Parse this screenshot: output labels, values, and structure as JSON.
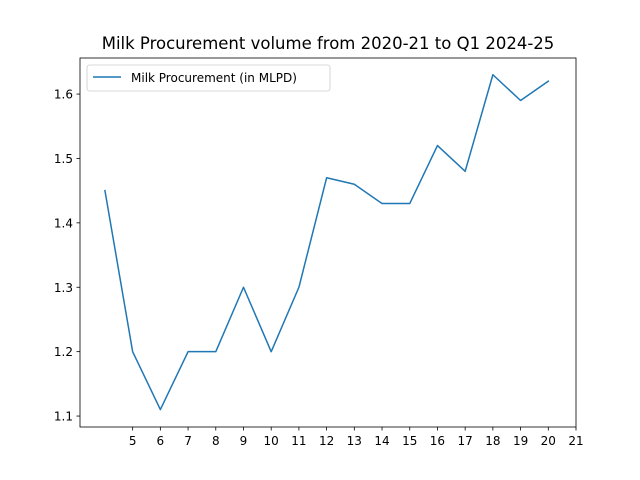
{
  "chart_data": {
    "type": "line",
    "title": "Milk Procurement volume from 2020-21 to Q1 2024-25",
    "xlabel": "",
    "ylabel": "",
    "x_ticks": [
      5,
      6,
      7,
      8,
      9,
      10,
      11,
      12,
      13,
      14,
      15,
      16,
      17,
      18,
      19,
      20,
      21
    ],
    "y_ticks": [
      1.1,
      1.2,
      1.3,
      1.4,
      1.5,
      1.6
    ],
    "xlim": [
      3.1,
      21
    ],
    "ylim": [
      1.083,
      1.656
    ],
    "grid": false,
    "legend_position": "upper-left",
    "series": [
      {
        "name": "Milk Procurement (in MLPD)",
        "color": "#1f77b4",
        "x": [
          4,
          5,
          6,
          7,
          8,
          9,
          10,
          11,
          12,
          13,
          14,
          15,
          16,
          17,
          18,
          19,
          20
        ],
        "y": [
          1.45,
          1.2,
          1.11,
          1.2,
          1.2,
          1.3,
          1.2,
          1.3,
          1.47,
          1.46,
          1.43,
          1.43,
          1.52,
          1.48,
          1.63,
          1.59,
          1.62
        ]
      }
    ]
  }
}
